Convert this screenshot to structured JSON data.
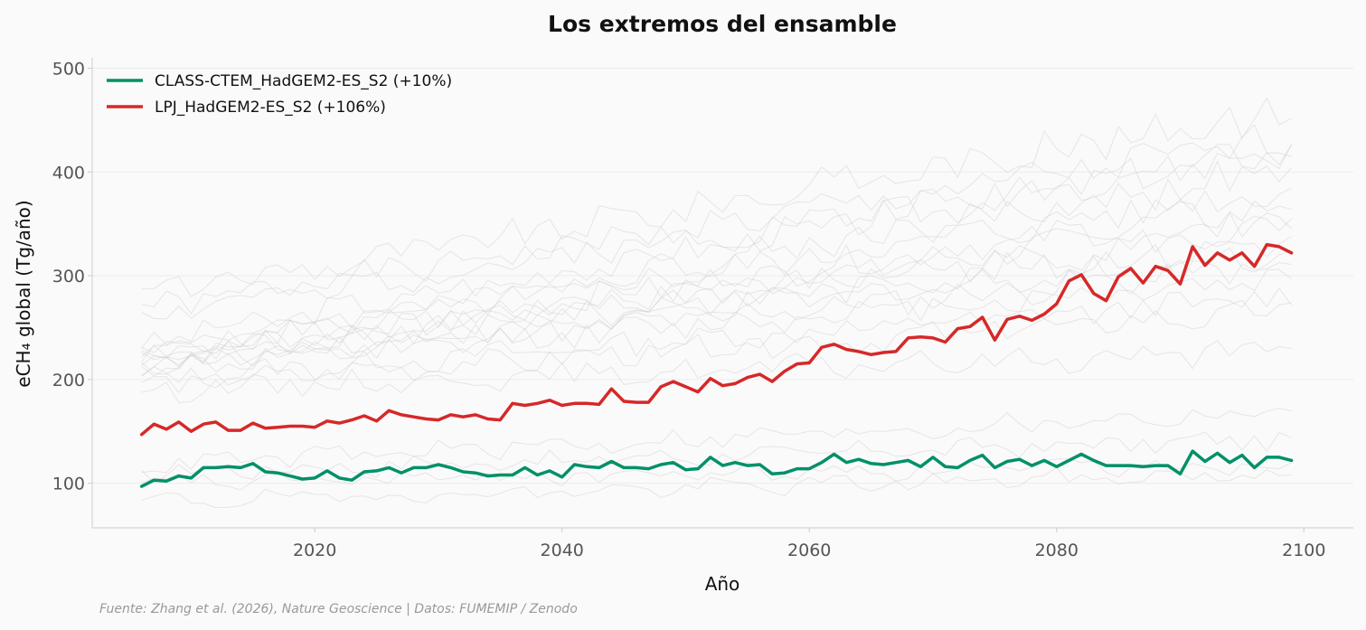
{
  "chart_data": {
    "type": "line",
    "title": "Los extremos del ensamble",
    "xlabel": "Año",
    "ylabel": "eCH₄ global (Tg/año)",
    "xlim": [
      2002,
      2104
    ],
    "ylim": [
      57,
      510
    ],
    "x_ticks": [
      2020,
      2040,
      2060,
      2080,
      2100
    ],
    "y_ticks": [
      100,
      200,
      300,
      400,
      500
    ],
    "grid": "horizontal",
    "legend_position": "top-left",
    "colors": {
      "background": "#fafafa",
      "class_ctem": "#009068",
      "lpj": "#d62828",
      "ensemble": "#cccccc",
      "grid": "#ececec",
      "axis": "#cccccc"
    },
    "x_start": 2006,
    "x_end": 2099,
    "series": [
      {
        "name": "CLASS-CTEM_HadGEM2-ES_S2 (+10%)",
        "color": "#009068",
        "values": [
          97,
          103,
          102,
          107,
          105,
          115,
          115,
          116,
          115,
          119,
          111,
          110,
          107,
          104,
          105,
          112,
          105,
          103,
          111,
          112,
          115,
          110,
          115,
          115,
          118,
          115,
          111,
          110,
          107,
          108,
          108,
          115,
          108,
          112,
          106,
          118,
          116,
          115,
          121,
          115,
          115,
          114,
          118,
          120,
          113,
          114,
          125,
          117,
          120,
          117,
          118,
          109,
          110,
          114,
          114,
          120,
          128,
          120,
          123,
          119,
          118,
          120,
          122,
          116,
          125,
          116,
          115,
          122,
          127,
          115,
          121,
          123,
          117,
          122,
          116,
          122,
          128,
          122,
          117,
          117,
          117,
          116,
          117,
          117,
          109,
          131,
          121,
          129,
          120,
          127,
          115,
          125,
          125,
          122
        ]
      },
      {
        "name": "LPJ_HadGEM2-ES_S2 (+106%)",
        "color": "#d62828",
        "values": [
          147,
          157,
          152,
          159,
          150,
          157,
          159,
          151,
          151,
          158,
          153,
          154,
          155,
          155,
          154,
          160,
          158,
          161,
          165,
          160,
          170,
          166,
          164,
          162,
          161,
          166,
          164,
          166,
          162,
          161,
          177,
          175,
          177,
          180,
          175,
          177,
          177,
          176,
          191,
          179,
          178,
          178,
          193,
          198,
          193,
          188,
          201,
          194,
          196,
          202,
          205,
          198,
          208,
          215,
          216,
          231,
          234,
          229,
          227,
          224,
          226,
          227,
          240,
          241,
          240,
          236,
          249,
          251,
          260,
          238,
          258,
          261,
          257,
          263,
          273,
          295,
          301,
          283,
          276,
          299,
          307,
          293,
          309,
          305,
          292,
          328,
          310,
          322,
          315,
          322,
          309,
          330,
          328,
          322
        ]
      }
    ],
    "ensemble_background": [
      {
        "start": 282,
        "slope": 1.9
      },
      {
        "start": 268,
        "slope": 1.75
      },
      {
        "start": 264,
        "slope": 1.65
      },
      {
        "start": 236,
        "slope": 2.0
      },
      {
        "start": 230,
        "slope": 1.85
      },
      {
        "start": 226,
        "slope": 1.7
      },
      {
        "start": 224,
        "slope": 1.55
      },
      {
        "start": 222,
        "slope": 1.45
      },
      {
        "start": 220,
        "slope": 1.35
      },
      {
        "start": 218,
        "slope": 1.25
      },
      {
        "start": 215,
        "slope": 1.15
      },
      {
        "start": 212,
        "slope": 1.05
      },
      {
        "start": 210,
        "slope": 0.95
      },
      {
        "start": 200,
        "slope": 0.85
      },
      {
        "start": 195,
        "slope": 0.75
      },
      {
        "start": 190,
        "slope": 0.4
      },
      {
        "start": 118,
        "slope": 0.55
      },
      {
        "start": 110,
        "slope": 0.35
      },
      {
        "start": 100,
        "slope": 0.2
      },
      {
        "start": 82,
        "slope": 0.3
      }
    ]
  },
  "source_note": "Fuente: Zhang et al. (2026), Nature Geoscience | Datos: FUMEMIP / Zenodo"
}
